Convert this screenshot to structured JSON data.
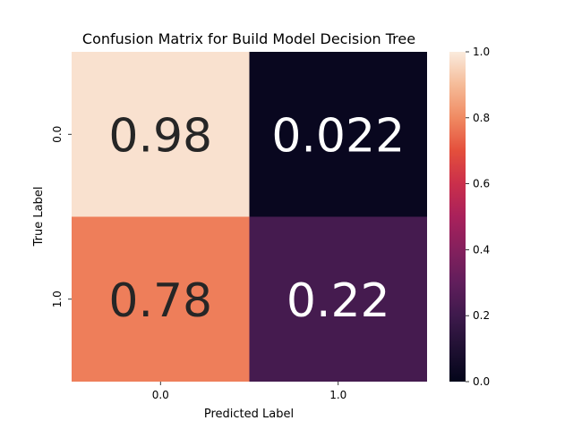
{
  "chart_data": {
    "type": "heatmap",
    "title": "Confusion Matrix for Build Model Decision Tree",
    "xlabel": "Predicted Label",
    "ylabel": "True Label",
    "x_categories": [
      "0.0",
      "1.0"
    ],
    "y_categories": [
      "0.0",
      "1.0"
    ],
    "values": [
      [
        0.98,
        0.022
      ],
      [
        0.78,
        0.22
      ]
    ],
    "annotations": [
      [
        "0.98",
        "0.022"
      ],
      [
        "0.78",
        "0.22"
      ]
    ],
    "colorbar": {
      "range": [
        0.0,
        1.0
      ],
      "ticks": [
        "0.0",
        "0.2",
        "0.4",
        "0.6",
        "0.8",
        "1.0"
      ],
      "colormap": "rocket"
    },
    "grid": false
  }
}
